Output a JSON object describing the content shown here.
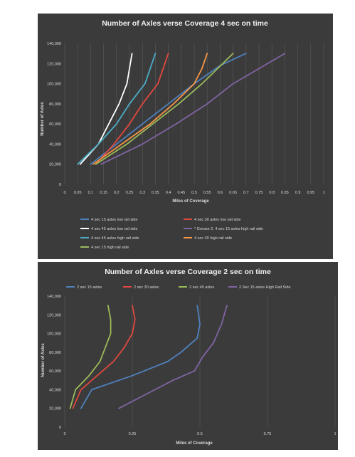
{
  "chart_data": [
    {
      "type": "line",
      "title": "Number of Axles verse Coverage 4 sec on time",
      "xlabel": "Miles of Coverage",
      "ylabel": "Number of Axles",
      "xlim": [
        0,
        1
      ],
      "ylim": [
        0,
        140000
      ],
      "x_ticks": [
        "0",
        "0.05",
        "0.1",
        "0.15",
        "0.2",
        "0.25",
        "0.3",
        "0.35",
        "0.4",
        "0.45",
        "0.5",
        "0.55",
        "0.6",
        "0.65",
        "0.7",
        "0.75",
        "0.8",
        "0.85",
        "0.9",
        "0.95",
        "1"
      ],
      "y_ticks": [
        "0",
        "20,000",
        "40,000",
        "60,000",
        "80,000",
        "100,000",
        "120,000",
        "140,000"
      ],
      "grid": "vertical",
      "legend_position": "bottom",
      "series": [
        {
          "name": "4 sec 15 axles low rail side",
          "color": "#4f81bd",
          "points": [
            [
              0.1,
              20000
            ],
            [
              0.2,
              40000
            ],
            [
              0.3,
              60000
            ],
            [
              0.4,
              80000
            ],
            [
              0.5,
              100000
            ],
            [
              0.6,
              118000
            ],
            [
              0.7,
              130000
            ]
          ]
        },
        {
          "name": "4 sec 30 axles low rail side",
          "color": "#e0483f",
          "points": [
            [
              0.12,
              20000
            ],
            [
              0.19,
              40000
            ],
            [
              0.25,
              60000
            ],
            [
              0.3,
              80000
            ],
            [
              0.36,
              100000
            ],
            [
              0.38,
              115000
            ],
            [
              0.4,
              130000
            ]
          ]
        },
        {
          "name": "4 sec 45 axles low rail side",
          "color": "#ffffff",
          "points": [
            [
              0.06,
              20000
            ],
            [
              0.13,
              40000
            ],
            [
              0.17,
              60000
            ],
            [
              0.21,
              80000
            ],
            [
              0.24,
              100000
            ],
            [
              0.25,
              115000
            ],
            [
              0.26,
              130000
            ]
          ]
        },
        {
          "name": "* Grease 2, 4 sec 15 axles high rail side",
          "color": "#8064a2",
          "points": [
            [
              0.14,
              20000
            ],
            [
              0.3,
              40000
            ],
            [
              0.43,
              60000
            ],
            [
              0.55,
              80000
            ],
            [
              0.65,
              100000
            ],
            [
              0.77,
              118000
            ],
            [
              0.85,
              130000
            ]
          ]
        },
        {
          "name": "4 sec 45 axles high rail side",
          "color": "#4bacc6",
          "points": [
            [
              0.05,
              20000
            ],
            [
              0.13,
              40000
            ],
            [
              0.2,
              60000
            ],
            [
              0.25,
              80000
            ],
            [
              0.31,
              100000
            ],
            [
              0.33,
              115000
            ],
            [
              0.35,
              130000
            ]
          ]
        },
        {
          "name": "4 sec 30 high rail side",
          "color": "#f79646",
          "points": [
            [
              0.11,
              20000
            ],
            [
              0.22,
              40000
            ],
            [
              0.33,
              60000
            ],
            [
              0.42,
              80000
            ],
            [
              0.5,
              100000
            ],
            [
              0.53,
              115000
            ],
            [
              0.55,
              130000
            ]
          ]
        },
        {
          "name": "4 sec 15 high rail side",
          "color": "#9bbb59",
          "points": [
            [
              0.12,
              20000
            ],
            [
              0.24,
              40000
            ],
            [
              0.34,
              60000
            ],
            [
              0.44,
              80000
            ],
            [
              0.53,
              100000
            ],
            [
              0.59,
              115000
            ],
            [
              0.65,
              130000
            ]
          ]
        }
      ]
    },
    {
      "type": "line",
      "title": "Number of Axles verse Coverage 2 sec on time",
      "xlabel": "Miles of Coverage",
      "ylabel": "Number of Axles",
      "xlim": [
        0,
        1
      ],
      "ylim": [
        0,
        140000
      ],
      "x_ticks": [
        "0",
        "0.25",
        "0.5",
        "0.75",
        "1"
      ],
      "y_ticks": [
        "0",
        "20,000",
        "40,000",
        "60,000",
        "80,000",
        "100,000",
        "120,000",
        "140,000"
      ],
      "grid": "vertical",
      "legend_position": "top",
      "series": [
        {
          "name": "2 sec 15 axles",
          "color": "#4f81bd",
          "points": [
            [
              0.06,
              20000
            ],
            [
              0.1,
              40000
            ],
            [
              0.25,
              55000
            ],
            [
              0.38,
              70000
            ],
            [
              0.43,
              80000
            ],
            [
              0.49,
              95000
            ],
            [
              0.5,
              110000
            ],
            [
              0.49,
              130000
            ]
          ]
        },
        {
          "name": "2 sec 30 axles",
          "color": "#e0483f",
          "points": [
            [
              0.03,
              20000
            ],
            [
              0.06,
              40000
            ],
            [
              0.12,
              55000
            ],
            [
              0.18,
              70000
            ],
            [
              0.22,
              85000
            ],
            [
              0.25,
              100000
            ],
            [
              0.26,
              115000
            ],
            [
              0.25,
              130000
            ]
          ]
        },
        {
          "name": "2 sec 45 axles",
          "color": "#9bbb59",
          "points": [
            [
              0.02,
              20000
            ],
            [
              0.04,
              40000
            ],
            [
              0.09,
              55000
            ],
            [
              0.13,
              70000
            ],
            [
              0.15,
              85000
            ],
            [
              0.17,
              100000
            ],
            [
              0.17,
              115000
            ],
            [
              0.16,
              130000
            ]
          ]
        },
        {
          "name": "2 Sec 15 axles High Rail Side",
          "color": "#8064a2",
          "points": [
            [
              0.2,
              20000
            ],
            [
              0.3,
              35000
            ],
            [
              0.4,
              50000
            ],
            [
              0.48,
              60000
            ],
            [
              0.51,
              75000
            ],
            [
              0.55,
              90000
            ],
            [
              0.58,
              110000
            ],
            [
              0.6,
              130000
            ]
          ]
        }
      ]
    }
  ]
}
